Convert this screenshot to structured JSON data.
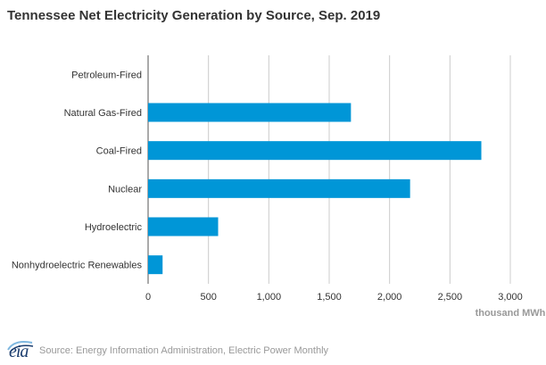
{
  "title": "Tennessee Net Electricity Generation by Source, Sep. 2019",
  "source": "Source: Energy Information Administration, Electric Power Monthly",
  "logo_text": "eia",
  "colors": {
    "bar": "#0096d7",
    "grid": "#cccccc",
    "axis": "#555555",
    "text": "#333333"
  },
  "chart_data": {
    "type": "bar",
    "orientation": "horizontal",
    "categories": [
      "Petroleum-Fired",
      "Natural Gas-Fired",
      "Coal-Fired",
      "Nuclear",
      "Hydroelectric",
      "Nonhydroelectric Renewables"
    ],
    "values": [
      0,
      1680,
      2760,
      2170,
      580,
      120
    ],
    "title": "Tennessee Net Electricity Generation by Source, Sep. 2019",
    "xlabel": "thousand MWh",
    "ylabel": "",
    "xlim": [
      0,
      3000
    ],
    "xticks": [
      0,
      500,
      1000,
      1500,
      2000,
      2500,
      3000
    ],
    "xtick_labels": [
      "0",
      "500",
      "1,000",
      "1,500",
      "2,000",
      "2,500",
      "3,000"
    ],
    "grid": true
  }
}
